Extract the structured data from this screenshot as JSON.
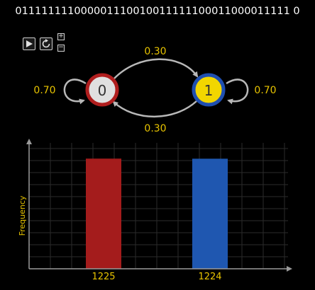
{
  "sequence": "011111111000001110010011111100011000011111 0",
  "controls": {
    "play_icon": "play-icon",
    "reset_icon": "reset-icon",
    "zoom_in": "+",
    "zoom_out": "−"
  },
  "markov": {
    "states": [
      {
        "label": "0",
        "fill": "#e0e0e0",
        "ring": "#b01e1e",
        "text": "#333333"
      },
      {
        "label": "1",
        "fill": "#f2d600",
        "ring": "#1f4fb0",
        "text": "#333333"
      }
    ],
    "transitions": {
      "p00": "0.70",
      "p01": "0.30",
      "p10": "0.30",
      "p11": "0.70"
    },
    "label_color": "#e8c400",
    "arrow_color": "#b8b8b8"
  },
  "chart_data": {
    "type": "bar",
    "categories": [
      "1225",
      "1224"
    ],
    "values": [
      1225,
      1224
    ],
    "colors": [
      "#a41c1c",
      "#1f57b0"
    ],
    "ylabel": "Frequency",
    "ylim": [
      0,
      1400
    ],
    "grid": true,
    "label_color": "#e8c400"
  }
}
